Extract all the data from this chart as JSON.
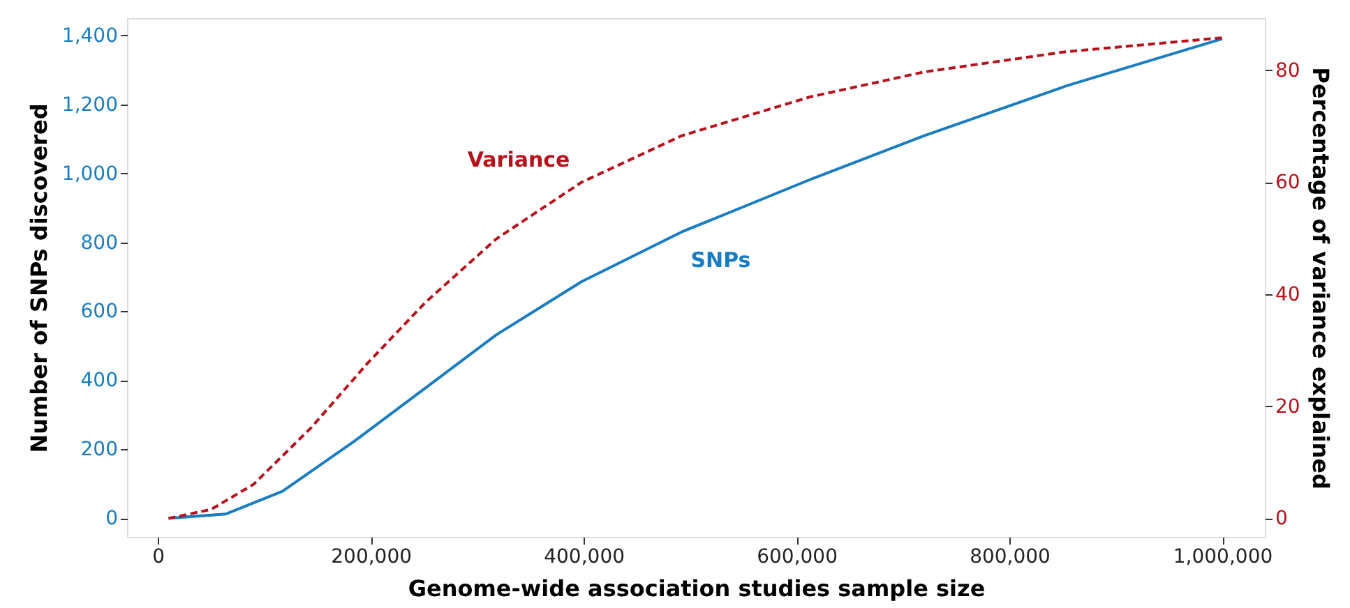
{
  "chart_data": {
    "type": "line",
    "xlabel": "Genome-wide association studies sample size",
    "ylabel": "Number of SNPs discovered",
    "y2label": "Percentage of variance explained",
    "xlim": [
      -29000,
      1040000
    ],
    "xticks": [
      {
        "value": 0,
        "label": "0"
      },
      {
        "value": 200000,
        "label": "200,000"
      },
      {
        "value": 400000,
        "label": "400,000"
      },
      {
        "value": 600000,
        "label": "600,000"
      },
      {
        "value": 800000,
        "label": "800,000"
      },
      {
        "value": 1000000,
        "label": "1,000,000"
      }
    ],
    "ylim": [
      -54,
      1450
    ],
    "yticks": [
      {
        "value": 0,
        "label": "0"
      },
      {
        "value": 200,
        "label": "200"
      },
      {
        "value": 400,
        "label": "400"
      },
      {
        "value": 600,
        "label": "600"
      },
      {
        "value": 800,
        "label": "800"
      },
      {
        "value": 1000,
        "label": "1,000"
      },
      {
        "value": 1200,
        "label": "1,200"
      },
      {
        "value": 1400,
        "label": "1,400"
      }
    ],
    "y2lim": [
      -3.3,
      89.3
    ],
    "y2ticks": [
      0,
      20,
      40,
      60,
      80
    ],
    "grid": false,
    "marker": "none",
    "series": [
      {
        "name": "SNPs",
        "color": "#1a7cc1",
        "line_style": "solid",
        "x": [
          10000,
          63500,
          117000,
          184000,
          251000,
          318000,
          398000,
          492000,
          612000,
          720000,
          853000,
          1000000
        ],
        "values": [
          0,
          12,
          78,
          222,
          377,
          532,
          686,
          830,
          981,
          1109,
          1253,
          1390
        ]
      },
      {
        "name": "Variance",
        "color": "#b5121b",
        "line_style": "dashed",
        "axis": "y2",
        "x": [
          10000,
          50000,
          90000,
          144000,
          197000,
          251000,
          318000,
          398000,
          492000,
          612000,
          720000,
          853000,
          1000000
        ],
        "values": [
          0,
          1.6,
          6.1,
          16.2,
          27.7,
          38.5,
          49.9,
          60.0,
          68.3,
          75.2,
          79.7,
          83.3,
          85.8
        ]
      }
    ]
  }
}
